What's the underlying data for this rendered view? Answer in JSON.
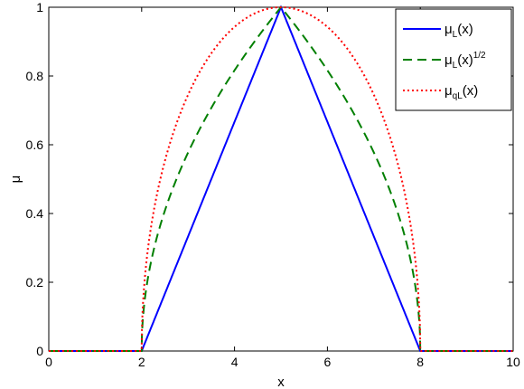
{
  "chart_data": {
    "type": "line",
    "xlabel": "x",
    "ylabel": "μ",
    "xlim": [
      0,
      10
    ],
    "ylim": [
      0,
      1
    ],
    "x_ticks": [
      "0",
      "2",
      "4",
      "6",
      "8",
      "10"
    ],
    "y_ticks": [
      "0",
      "0.2",
      "0.4",
      "0.6",
      "0.8",
      "1"
    ],
    "grid": false,
    "legend_position": "top-right",
    "series": [
      {
        "name": "μL(x)",
        "legend_main": "μ",
        "legend_sub": "L",
        "legend_tail": "(x)",
        "legend_sup": "",
        "color": "#0000ff",
        "style": "solid",
        "function": "triangular",
        "params": {
          "a": 2,
          "b": 5,
          "c": 8,
          "power": 1
        }
      },
      {
        "name": "μL(x)1/2",
        "legend_main": "μ",
        "legend_sub": "L",
        "legend_tail": "(x)",
        "legend_sup": "1/2",
        "color": "#007f00",
        "style": "dashed",
        "function": "triangular",
        "params": {
          "a": 2,
          "b": 5,
          "c": 8,
          "power": 0.5
        }
      },
      {
        "name": "μqL(x)",
        "legend_main": "μ",
        "legend_sub": "qL",
        "legend_tail": "(x)",
        "legend_sup": "",
        "color": "#ff0000",
        "style": "dotted",
        "function": "quadratic",
        "params": {
          "a": 2,
          "b": 5,
          "c": 8
        }
      }
    ]
  }
}
